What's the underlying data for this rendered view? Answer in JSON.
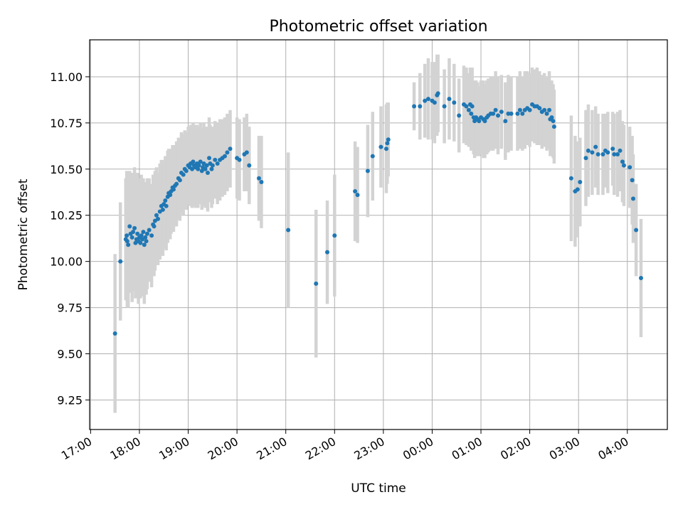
{
  "chart_data": {
    "type": "scatter",
    "title": "Photometric offset variation",
    "xlabel": "UTC time",
    "ylabel": "Photometric offset",
    "x_unit": "hours since 17:00 UTC",
    "xlim": [
      -0.02,
      11.82
    ],
    "ylim": [
      9.09,
      11.2
    ],
    "grid": true,
    "colors": {
      "points": "#1f77b4",
      "errorbars": "#d3d3d3",
      "grid": "#b0b0b0"
    },
    "xticks": [
      {
        "x": 0,
        "label": "17:00"
      },
      {
        "x": 1,
        "label": "18:00"
      },
      {
        "x": 2,
        "label": "19:00"
      },
      {
        "x": 3,
        "label": "20:00"
      },
      {
        "x": 4,
        "label": "21:00"
      },
      {
        "x": 5,
        "label": "22:00"
      },
      {
        "x": 6,
        "label": "23:00"
      },
      {
        "x": 7,
        "label": "00:00"
      },
      {
        "x": 8,
        "label": "01:00"
      },
      {
        "x": 9,
        "label": "02:00"
      },
      {
        "x": 10,
        "label": "03:00"
      },
      {
        "x": 11,
        "label": "04:00"
      }
    ],
    "yticks": [
      {
        "y": 9.25,
        "label": "9.25"
      },
      {
        "y": 9.5,
        "label": "9.50"
      },
      {
        "y": 9.75,
        "label": "9.75"
      },
      {
        "y": 10.0,
        "label": "10.00"
      },
      {
        "y": 10.25,
        "label": "10.25"
      },
      {
        "y": 10.5,
        "label": "10.50"
      },
      {
        "y": 10.75,
        "label": "10.75"
      },
      {
        "y": 11.0,
        "label": "11.00"
      }
    ],
    "series": [
      {
        "name": "offset",
        "columns": [
          "x_hours",
          "y",
          "yerr"
        ],
        "points": [
          [
            0.5,
            9.61,
            0.43
          ],
          [
            0.61,
            10.0,
            0.32
          ],
          [
            0.72,
            10.12,
            0.33
          ],
          [
            0.74,
            10.14,
            0.35
          ],
          [
            0.75,
            10.11,
            0.36
          ],
          [
            0.77,
            10.09,
            0.34
          ],
          [
            0.8,
            10.19,
            0.3
          ],
          [
            0.82,
            10.15,
            0.32
          ],
          [
            0.85,
            10.13,
            0.35
          ],
          [
            0.87,
            10.16,
            0.32
          ],
          [
            0.9,
            10.18,
            0.33
          ],
          [
            0.92,
            10.1,
            0.3
          ],
          [
            0.94,
            10.12,
            0.31
          ],
          [
            0.96,
            10.15,
            0.33
          ],
          [
            0.98,
            10.11,
            0.34
          ],
          [
            1.0,
            10.13,
            0.32
          ],
          [
            1.02,
            10.1,
            0.3
          ],
          [
            1.04,
            10.14,
            0.33
          ],
          [
            1.06,
            10.12,
            0.31
          ],
          [
            1.08,
            10.16,
            0.29
          ],
          [
            1.1,
            10.09,
            0.32
          ],
          [
            1.12,
            10.13,
            0.3
          ],
          [
            1.14,
            10.11,
            0.29
          ],
          [
            1.16,
            10.15,
            0.3
          ],
          [
            1.2,
            10.17,
            0.28
          ],
          [
            1.25,
            10.14,
            0.28
          ],
          [
            1.28,
            10.2,
            0.27
          ],
          [
            1.3,
            10.19,
            0.27
          ],
          [
            1.32,
            10.22,
            0.27
          ],
          [
            1.35,
            10.25,
            0.26
          ],
          [
            1.38,
            10.23,
            0.25
          ],
          [
            1.42,
            10.27,
            0.26
          ],
          [
            1.45,
            10.3,
            0.25
          ],
          [
            1.48,
            10.28,
            0.25
          ],
          [
            1.5,
            10.31,
            0.24
          ],
          [
            1.53,
            10.33,
            0.24
          ],
          [
            1.55,
            10.3,
            0.24
          ],
          [
            1.58,
            10.35,
            0.25
          ],
          [
            1.6,
            10.37,
            0.24
          ],
          [
            1.63,
            10.36,
            0.24
          ],
          [
            1.65,
            10.38,
            0.23
          ],
          [
            1.68,
            10.4,
            0.23
          ],
          [
            1.7,
            10.39,
            0.23
          ],
          [
            1.73,
            10.41,
            0.22
          ],
          [
            1.76,
            10.42,
            0.23
          ],
          [
            1.8,
            10.45,
            0.22
          ],
          [
            1.83,
            10.44,
            0.22
          ],
          [
            1.86,
            10.48,
            0.22
          ],
          [
            1.9,
            10.47,
            0.22
          ],
          [
            1.93,
            10.5,
            0.21
          ],
          [
            1.96,
            10.49,
            0.21
          ],
          [
            2.0,
            10.52,
            0.21
          ],
          [
            2.03,
            10.51,
            0.21
          ],
          [
            2.05,
            10.53,
            0.21
          ],
          [
            2.08,
            10.5,
            0.21
          ],
          [
            2.1,
            10.54,
            0.21
          ],
          [
            2.12,
            10.52,
            0.22
          ],
          [
            2.15,
            10.51,
            0.22
          ],
          [
            2.18,
            10.53,
            0.21
          ],
          [
            2.2,
            10.5,
            0.21
          ],
          [
            2.22,
            10.52,
            0.21
          ],
          [
            2.25,
            10.54,
            0.21
          ],
          [
            2.28,
            10.49,
            0.21
          ],
          [
            2.3,
            10.51,
            0.21
          ],
          [
            2.32,
            10.53,
            0.22
          ],
          [
            2.35,
            10.5,
            0.21
          ],
          [
            2.38,
            10.52,
            0.21
          ],
          [
            2.4,
            10.48,
            0.21
          ],
          [
            2.43,
            10.56,
            0.22
          ],
          [
            2.45,
            10.53,
            0.21
          ],
          [
            2.48,
            10.5,
            0.21
          ],
          [
            2.5,
            10.52,
            0.21
          ],
          [
            2.55,
            10.55,
            0.21
          ],
          [
            2.6,
            10.53,
            0.22
          ],
          [
            2.65,
            10.55,
            0.22
          ],
          [
            2.7,
            10.56,
            0.21
          ],
          [
            2.75,
            10.57,
            0.21
          ],
          [
            2.8,
            10.59,
            0.21
          ],
          [
            2.86,
            10.61,
            0.21
          ],
          [
            3.0,
            10.56,
            0.22
          ],
          [
            3.05,
            10.55,
            0.22
          ],
          [
            3.15,
            10.58,
            0.2
          ],
          [
            3.2,
            10.59,
            0.21
          ],
          [
            3.25,
            10.52,
            0.21
          ],
          [
            3.45,
            10.45,
            0.23
          ],
          [
            3.5,
            10.43,
            0.25
          ],
          [
            4.05,
            10.17,
            0.42
          ],
          [
            4.62,
            9.88,
            0.4
          ],
          [
            4.85,
            10.05,
            0.28
          ],
          [
            5.0,
            10.14,
            0.33
          ],
          [
            5.42,
            10.38,
            0.27
          ],
          [
            5.47,
            10.36,
            0.26
          ],
          [
            5.68,
            10.49,
            0.25
          ],
          [
            5.78,
            10.57,
            0.24
          ],
          [
            5.95,
            10.62,
            0.22
          ],
          [
            6.06,
            10.61,
            0.24
          ],
          [
            6.08,
            10.64,
            0.22
          ],
          [
            6.1,
            10.66,
            0.2
          ],
          [
            6.63,
            10.84,
            0.13
          ],
          [
            6.75,
            10.84,
            0.18
          ],
          [
            6.85,
            10.87,
            0.2
          ],
          [
            6.92,
            10.88,
            0.22
          ],
          [
            7.0,
            10.87,
            0.21
          ],
          [
            7.05,
            10.86,
            0.22
          ],
          [
            7.1,
            10.9,
            0.22
          ],
          [
            7.12,
            10.91,
            0.21
          ],
          [
            7.25,
            10.84,
            0.2
          ],
          [
            7.35,
            10.88,
            0.22
          ],
          [
            7.45,
            10.86,
            0.21
          ],
          [
            7.55,
            10.79,
            0.2
          ],
          [
            7.65,
            10.85,
            0.21
          ],
          [
            7.7,
            10.84,
            0.21
          ],
          [
            7.75,
            10.82,
            0.2
          ],
          [
            7.78,
            10.85,
            0.2
          ],
          [
            7.8,
            10.8,
            0.2
          ],
          [
            7.82,
            10.84,
            0.21
          ],
          [
            7.85,
            10.78,
            0.2
          ],
          [
            7.87,
            10.76,
            0.2
          ],
          [
            7.9,
            10.78,
            0.2
          ],
          [
            7.93,
            10.77,
            0.2
          ],
          [
            7.96,
            10.76,
            0.19
          ],
          [
            8.0,
            10.78,
            0.2
          ],
          [
            8.05,
            10.77,
            0.21
          ],
          [
            8.08,
            10.76,
            0.2
          ],
          [
            8.12,
            10.78,
            0.2
          ],
          [
            8.15,
            10.79,
            0.2
          ],
          [
            8.2,
            10.8,
            0.2
          ],
          [
            8.25,
            10.8,
            0.2
          ],
          [
            8.3,
            10.82,
            0.21
          ],
          [
            8.35,
            10.79,
            0.21
          ],
          [
            8.42,
            10.81,
            0.2
          ],
          [
            8.5,
            10.76,
            0.21
          ],
          [
            8.56,
            10.8,
            0.21
          ],
          [
            8.62,
            10.8,
            0.2
          ],
          [
            8.75,
            10.8,
            0.2
          ],
          [
            8.8,
            10.82,
            0.21
          ],
          [
            8.85,
            10.8,
            0.2
          ],
          [
            8.9,
            10.82,
            0.21
          ],
          [
            8.95,
            10.83,
            0.2
          ],
          [
            9.0,
            10.82,
            0.2
          ],
          [
            9.05,
            10.85,
            0.2
          ],
          [
            9.1,
            10.84,
            0.2
          ],
          [
            9.15,
            10.84,
            0.21
          ],
          [
            9.2,
            10.83,
            0.2
          ],
          [
            9.25,
            10.81,
            0.2
          ],
          [
            9.3,
            10.82,
            0.2
          ],
          [
            9.35,
            10.8,
            0.2
          ],
          [
            9.4,
            10.82,
            0.21
          ],
          [
            9.42,
            10.77,
            0.2
          ],
          [
            9.45,
            10.78,
            0.2
          ],
          [
            9.48,
            10.76,
            0.2
          ],
          [
            9.5,
            10.73,
            0.2
          ],
          [
            9.85,
            10.45,
            0.34
          ],
          [
            9.93,
            10.38,
            0.3
          ],
          [
            9.98,
            10.39,
            0.26
          ],
          [
            10.03,
            10.43,
            0.24
          ],
          [
            10.15,
            10.56,
            0.26
          ],
          [
            10.2,
            10.6,
            0.25
          ],
          [
            10.28,
            10.59,
            0.23
          ],
          [
            10.35,
            10.62,
            0.22
          ],
          [
            10.4,
            10.58,
            0.22
          ],
          [
            10.5,
            10.58,
            0.22
          ],
          [
            10.55,
            10.6,
            0.2
          ],
          [
            10.6,
            10.59,
            0.22
          ],
          [
            10.7,
            10.61,
            0.2
          ],
          [
            10.73,
            10.58,
            0.22
          ],
          [
            10.8,
            10.58,
            0.23
          ],
          [
            10.85,
            10.6,
            0.22
          ],
          [
            10.9,
            10.54,
            0.22
          ],
          [
            10.93,
            10.52,
            0.22
          ],
          [
            11.05,
            10.51,
            0.22
          ],
          [
            11.1,
            10.44,
            0.24
          ],
          [
            11.12,
            10.34,
            0.24
          ],
          [
            11.18,
            10.17,
            0.25
          ],
          [
            11.28,
            9.91,
            0.32
          ]
        ]
      }
    ]
  }
}
